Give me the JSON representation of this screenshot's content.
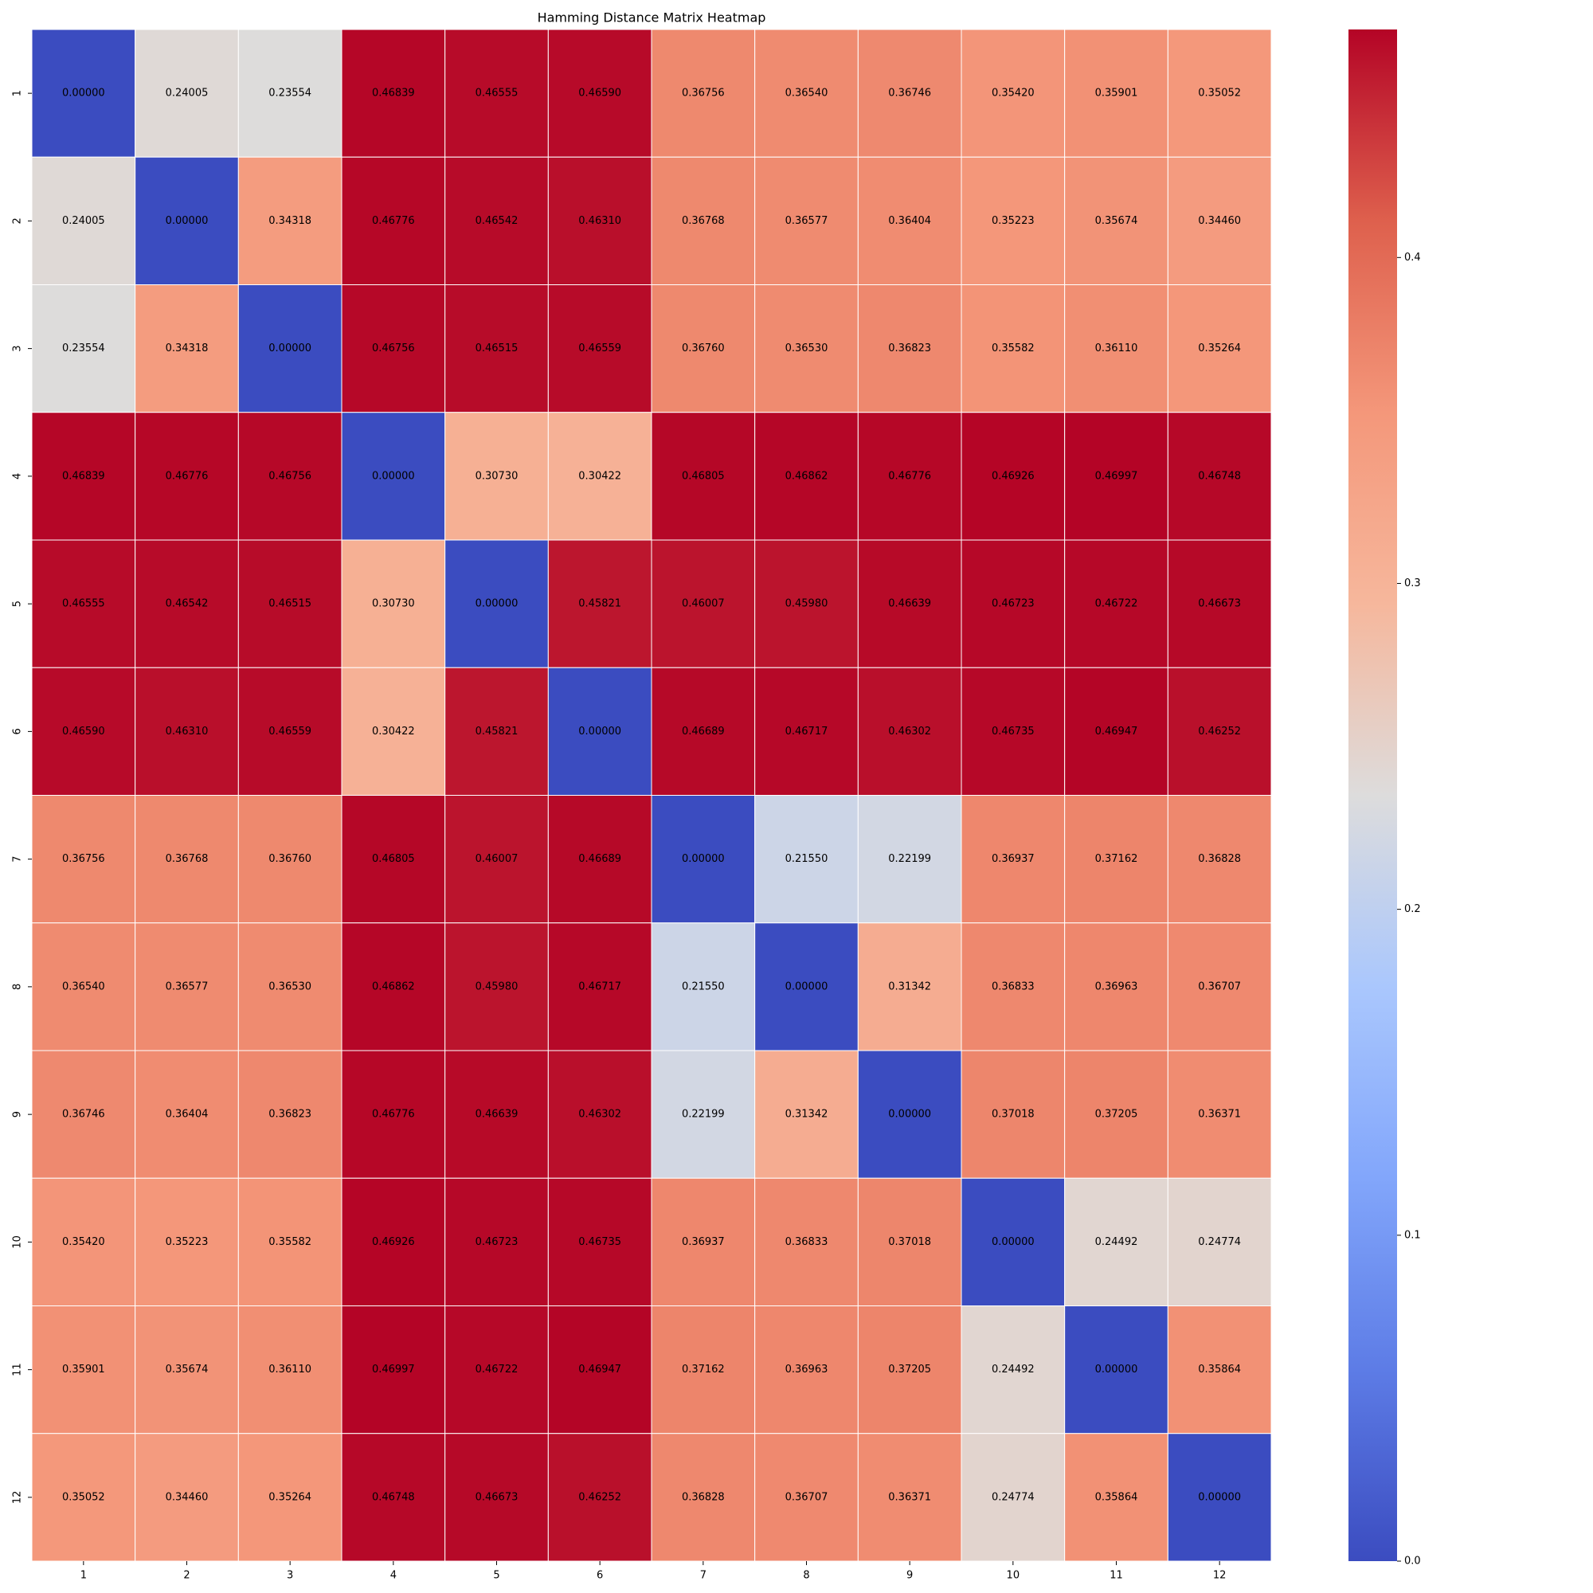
{
  "chart_data": {
    "type": "heatmap",
    "title": "Hamming Distance Matrix Heatmap",
    "x_categories": [
      "1",
      "2",
      "3",
      "4",
      "5",
      "6",
      "7",
      "8",
      "9",
      "10",
      "11",
      "12"
    ],
    "y_categories": [
      "1",
      "2",
      "3",
      "4",
      "5",
      "6",
      "7",
      "8",
      "9",
      "10",
      "11",
      "12"
    ],
    "colormap": "coolwarm",
    "zlim": [
      0,
      0.46997
    ],
    "zticks": [
      {
        "value": 0,
        "label": "0.0"
      },
      0.1,
      0.2,
      0.3,
      0.4
    ],
    "values": [
      [
        0,
        0.24005,
        0.23554,
        0.46839,
        0.46555,
        0.4659,
        0.36756,
        0.3654,
        0.36746,
        0.3542,
        0.35901,
        0.35052
      ],
      [
        0.24005,
        0,
        0.34318,
        0.46776,
        0.46542,
        0.4631,
        0.36768,
        0.36577,
        0.36404,
        0.35223,
        0.35674,
        0.3446
      ],
      [
        0.23554,
        0.34318,
        0,
        0.46756,
        0.46515,
        0.46559,
        0.3676,
        0.3653,
        0.36823,
        0.35582,
        0.3611,
        0.35264
      ],
      [
        0.46839,
        0.46776,
        0.46756,
        0,
        0.3073,
        0.30422,
        0.46805,
        0.46862,
        0.46776,
        0.46926,
        0.46997,
        0.46748
      ],
      [
        0.46555,
        0.46542,
        0.46515,
        0.3073,
        0,
        0.45821,
        0.46007,
        0.4598,
        0.46639,
        0.46723,
        0.46722,
        0.46673
      ],
      [
        0.4659,
        0.4631,
        0.46559,
        0.30422,
        0.45821,
        0,
        0.46689,
        0.46717,
        0.46302,
        0.46735,
        0.46947,
        0.46252
      ],
      [
        0.36756,
        0.36768,
        0.3676,
        0.46805,
        0.46007,
        0.46689,
        0,
        0.2155,
        0.22199,
        0.36937,
        0.37162,
        0.36828
      ],
      [
        0.3654,
        0.36577,
        0.3653,
        0.46862,
        0.4598,
        0.46717,
        0.2155,
        0,
        0.31342,
        0.36833,
        0.36963,
        0.36707
      ],
      [
        0.36746,
        0.36404,
        0.36823,
        0.46776,
        0.46639,
        0.46302,
        0.22199,
        0.31342,
        0,
        0.37018,
        0.37205,
        0.36371
      ],
      [
        0.3542,
        0.35223,
        0.35582,
        0.46926,
        0.46723,
        0.46735,
        0.36937,
        0.36833,
        0.37018,
        0,
        0.24492,
        0.24774
      ],
      [
        0.35901,
        0.35674,
        0.3611,
        0.46997,
        0.46722,
        0.46947,
        0.37162,
        0.36963,
        0.37205,
        0.24492,
        0,
        0.35864
      ],
      [
        0.35052,
        0.3446,
        0.35264,
        0.46748,
        0.46673,
        0.46252,
        0.36828,
        0.36707,
        0.36371,
        0.24774,
        0.35864,
        0
      ]
    ],
    "value_labels": [
      [
        "0.00000",
        "0.24005",
        "0.23554",
        "0.46839",
        "0.46555",
        "0.46590",
        "0.36756",
        "0.36540",
        "0.36746",
        "0.35420",
        "0.35901",
        "0.35052"
      ],
      [
        "0.24005",
        "0.00000",
        "0.34318",
        "0.46776",
        "0.46542",
        "0.46310",
        "0.36768",
        "0.36577",
        "0.36404",
        "0.35223",
        "0.35674",
        "0.34460"
      ],
      [
        "0.23554",
        "0.34318",
        "0.00000",
        "0.46756",
        "0.46515",
        "0.46559",
        "0.36760",
        "0.36530",
        "0.36823",
        "0.35582",
        "0.36110",
        "0.35264"
      ],
      [
        "0.46839",
        "0.46776",
        "0.46756",
        "0.00000",
        "0.30730",
        "0.30422",
        "0.46805",
        "0.46862",
        "0.46776",
        "0.46926",
        "0.46997",
        "0.46748"
      ],
      [
        "0.46555",
        "0.46542",
        "0.46515",
        "0.30730",
        "0.00000",
        "0.45821",
        "0.46007",
        "0.45980",
        "0.46639",
        "0.46723",
        "0.46722",
        "0.46673"
      ],
      [
        "0.46590",
        "0.46310",
        "0.46559",
        "0.30422",
        "0.45821",
        "0.00000",
        "0.46689",
        "0.46717",
        "0.46302",
        "0.46735",
        "0.46947",
        "0.46252"
      ],
      [
        "0.36756",
        "0.36768",
        "0.36760",
        "0.46805",
        "0.46007",
        "0.46689",
        "0.00000",
        "0.21550",
        "0.22199",
        "0.36937",
        "0.37162",
        "0.36828"
      ],
      [
        "0.36540",
        "0.36577",
        "0.36530",
        "0.46862",
        "0.45980",
        "0.46717",
        "0.21550",
        "0.00000",
        "0.31342",
        "0.36833",
        "0.36963",
        "0.36707"
      ],
      [
        "0.36746",
        "0.36404",
        "0.36823",
        "0.46776",
        "0.46639",
        "0.46302",
        "0.22199",
        "0.31342",
        "0.00000",
        "0.37018",
        "0.37205",
        "0.36371"
      ],
      [
        "0.35420",
        "0.35223",
        "0.35582",
        "0.46926",
        "0.46723",
        "0.46735",
        "0.36937",
        "0.36833",
        "0.37018",
        "0.00000",
        "0.24492",
        "0.24774"
      ],
      [
        "0.35901",
        "0.35674",
        "0.36110",
        "0.46997",
        "0.46722",
        "0.46947",
        "0.37162",
        "0.36963",
        "0.37205",
        "0.24492",
        "0.00000",
        "0.35864"
      ],
      [
        "0.35052",
        "0.34460",
        "0.35264",
        "0.46748",
        "0.46673",
        "0.46252",
        "0.36828",
        "0.36707",
        "0.36371",
        "0.24774",
        "0.35864",
        "0.00000"
      ]
    ]
  }
}
